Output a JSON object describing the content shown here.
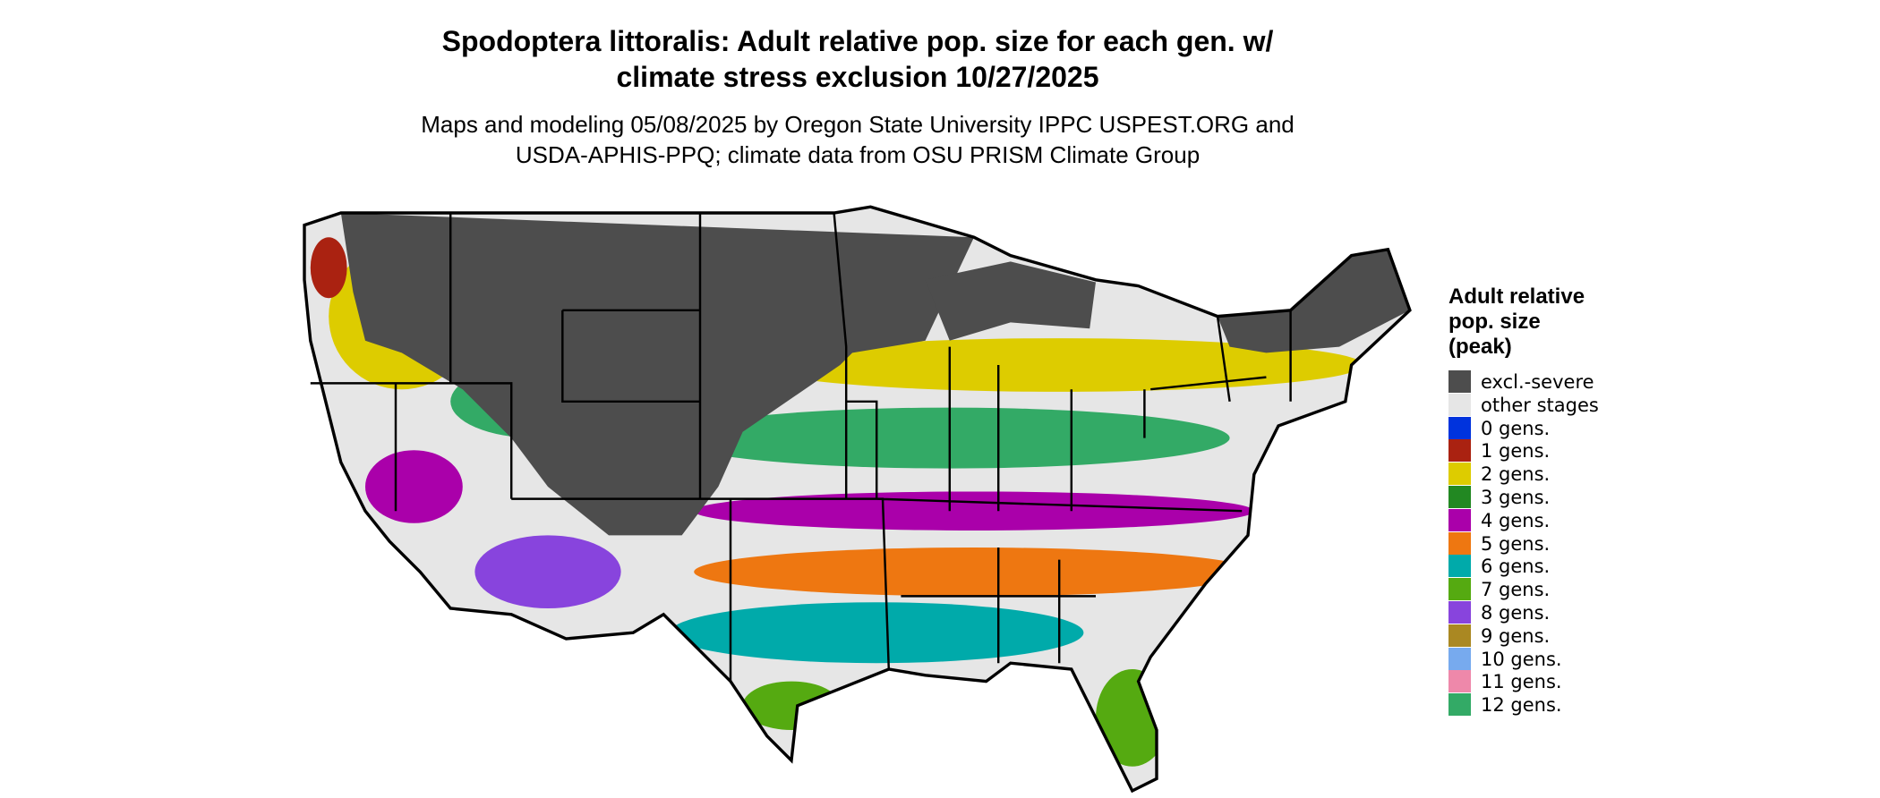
{
  "header": {
    "title_lines": [
      "Spodoptera littoralis: Adult relative pop. size for each gen. w/",
      "climate stress exclusion 10/27/2025"
    ],
    "subtitle_lines": [
      "Maps and modeling 05/08/2025 by Oregon State University IPPC USPEST.ORG and",
      "USDA-APHIS-PPQ; climate data from OSU PRISM Climate Group"
    ]
  },
  "legend": {
    "title_lines": [
      "Adult relative",
      "pop. size",
      "(peak)"
    ],
    "items": [
      {
        "label": "excl.-severe",
        "color": "#4d4d4d"
      },
      {
        "label": "other stages",
        "color": "#e6e6e6"
      },
      {
        "label": "0 gens.",
        "color": "#0033dd"
      },
      {
        "label": "1 gens.",
        "color": "#aa2211"
      },
      {
        "label": "2 gens.",
        "color": "#ddcc00"
      },
      {
        "label": "3 gens.",
        "color": "#228822"
      },
      {
        "label": "4 gens.",
        "color": "#aa00aa"
      },
      {
        "label": "5 gens.",
        "color": "#ee7711"
      },
      {
        "label": "6 gens.",
        "color": "#00aaaa"
      },
      {
        "label": "7 gens.",
        "color": "#55aa11"
      },
      {
        "label": "8 gens.",
        "color": "#8844dd"
      },
      {
        "label": "9 gens.",
        "color": "#aa8822"
      },
      {
        "label": "10 gens.",
        "color": "#77aaee"
      },
      {
        "label": "11 gens.",
        "color": "#ee88aa"
      },
      {
        "label": "12 gens.",
        "color": "#33aa66"
      }
    ]
  }
}
